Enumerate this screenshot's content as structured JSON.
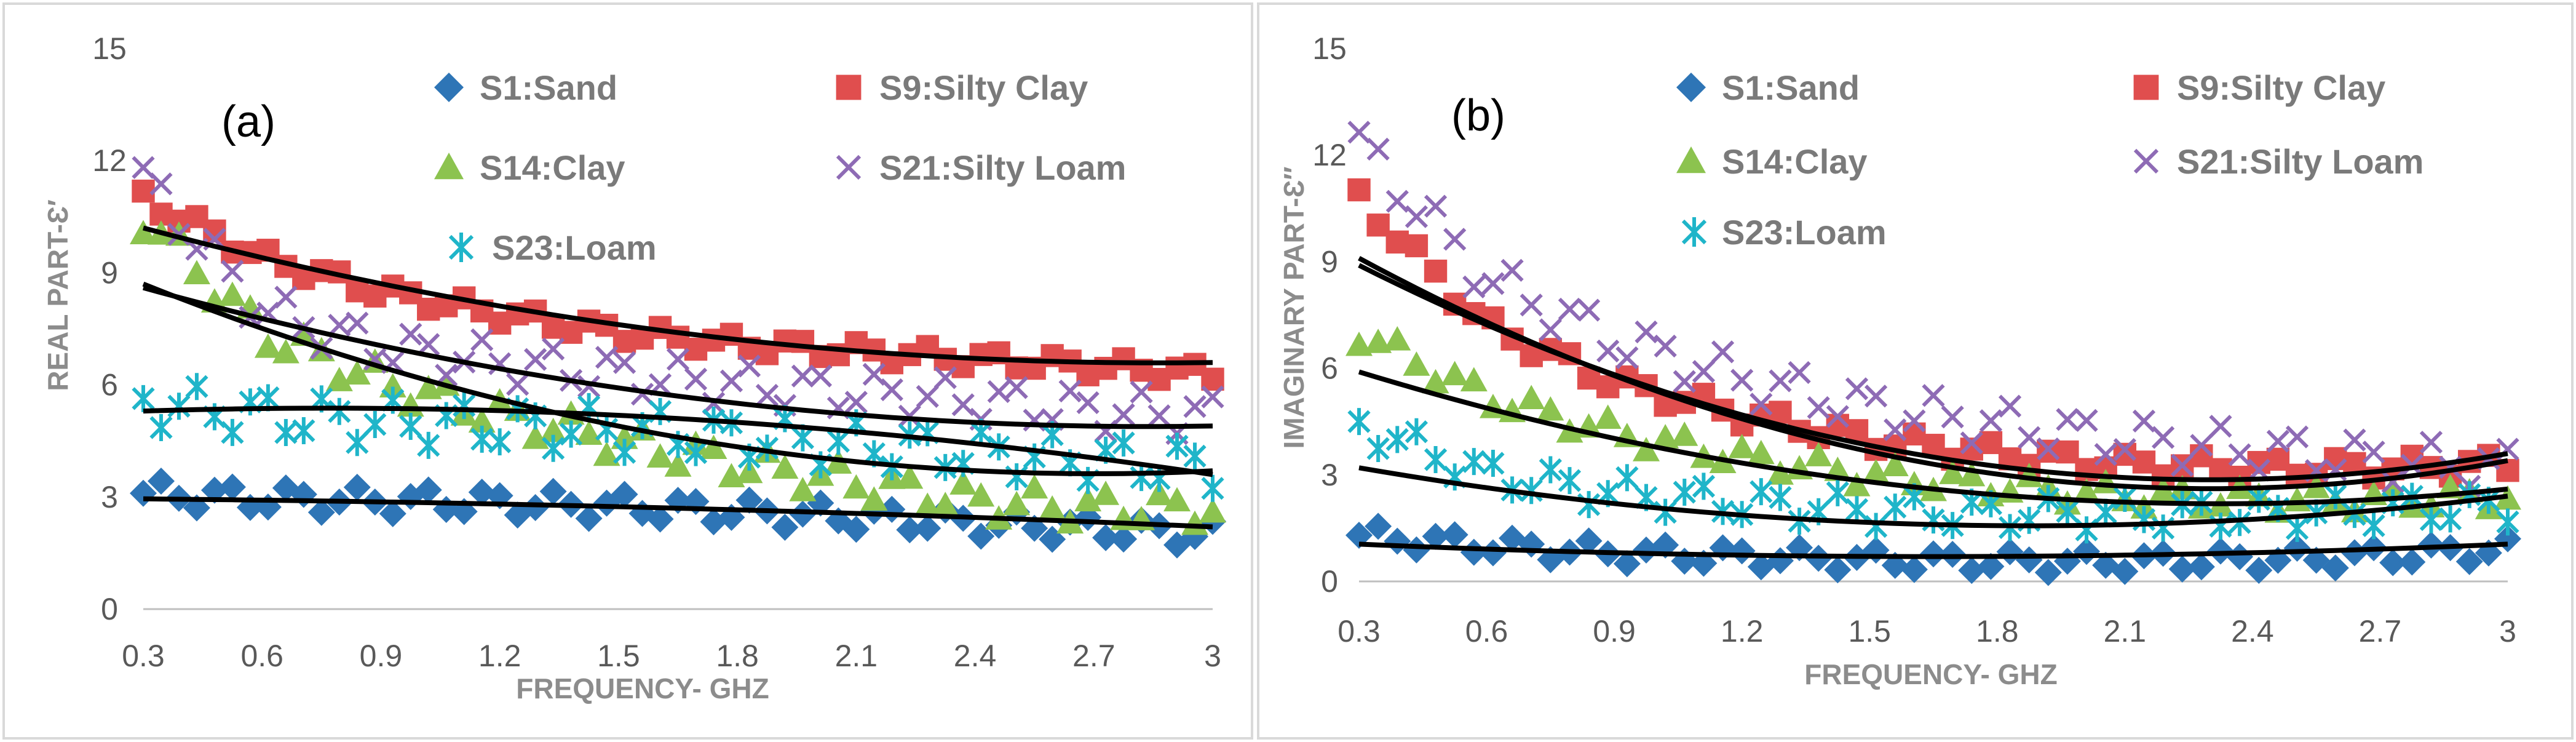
{
  "figure": {
    "series_styles": [
      {
        "key": "s1",
        "color": "#2e75b6",
        "marker": "diamond"
      },
      {
        "key": "s9",
        "color": "#e04e4e",
        "marker": "square"
      },
      {
        "key": "s14",
        "color": "#8cc34f",
        "marker": "triangle"
      },
      {
        "key": "s21",
        "color": "#8e6bb5",
        "marker": "x"
      },
      {
        "key": "s23",
        "color": "#1fb5c9",
        "marker": "asterisk"
      }
    ],
    "fit_color": "#000000",
    "grid": false
  },
  "chart_data": [
    {
      "type": "scatter",
      "panel_label": "(a)",
      "xlabel": "FREQUENCY- GHZ",
      "ylabel": "REAL PART-Ɛ′",
      "xlim": [
        0.3,
        3.0
      ],
      "ylim": [
        0,
        15
      ],
      "xticks": [
        "0.3",
        "0.6",
        "0.9",
        "1.2",
        "1.5",
        "1.8",
        "2.1",
        "2.4",
        "2.7",
        "3"
      ],
      "yticks": [
        "0",
        "3",
        "6",
        "9",
        "12",
        "15"
      ],
      "legend": [
        "S1:Sand",
        "S9:Silty Clay",
        "S14:Clay",
        "S21:Silty Loam",
        "S23:Loam"
      ],
      "series": [
        {
          "name": "S1:Sand",
          "x": [
            0.3,
            0.6,
            0.9,
            1.2,
            1.5,
            1.8,
            2.1,
            2.4,
            2.7,
            3.0
          ],
          "y": [
            3.1,
            2.95,
            2.9,
            2.85,
            2.75,
            2.6,
            2.45,
            2.3,
            2.15,
            2.0
          ],
          "spread": 0.35
        },
        {
          "name": "S9:Silty Clay",
          "x": [
            0.3,
            0.6,
            0.9,
            1.2,
            1.5,
            1.8,
            2.1,
            2.4,
            2.7,
            3.0
          ],
          "y": [
            11.0,
            9.4,
            8.5,
            7.9,
            7.4,
            7.1,
            6.9,
            6.7,
            6.5,
            6.3
          ],
          "spread": 0.25
        },
        {
          "name": "S14:Clay",
          "x": [
            0.3,
            0.6,
            0.9,
            1.2,
            1.5,
            1.8,
            2.1,
            2.4,
            2.7,
            3.0
          ],
          "y": [
            10.5,
            7.4,
            6.1,
            5.2,
            4.5,
            3.9,
            3.4,
            2.9,
            2.7,
            2.7
          ],
          "spread": 0.45
        },
        {
          "name": "S21:Silty Loam",
          "x": [
            0.3,
            0.6,
            0.9,
            1.2,
            1.5,
            1.8,
            2.1,
            2.4,
            2.7,
            3.0
          ],
          "y": [
            11.5,
            8.0,
            7.0,
            6.6,
            6.3,
            6.0,
            5.8,
            5.6,
            5.3,
            5.2
          ],
          "spread": 0.55
        },
        {
          "name": "S23:Loam",
          "x": [
            0.3,
            0.6,
            0.9,
            1.2,
            1.5,
            1.8,
            2.1,
            2.4,
            2.7,
            3.0
          ],
          "y": [
            5.5,
            5.2,
            5.0,
            4.9,
            4.8,
            4.6,
            4.4,
            4.2,
            4.0,
            3.8
          ],
          "spread": 0.6
        }
      ],
      "fits": [
        {
          "name": "S1:Sand",
          "x": [
            0.3,
            1.65,
            3.0
          ],
          "y": [
            2.95,
            2.7,
            2.2
          ]
        },
        {
          "name": "S9:Silty Clay",
          "x": [
            0.3,
            1.65,
            3.0
          ],
          "y": [
            10.2,
            7.4,
            6.6
          ]
        },
        {
          "name": "S14:Clay",
          "x": [
            0.3,
            1.65,
            3.0
          ],
          "y": [
            8.7,
            4.6,
            3.7
          ]
        },
        {
          "name": "S21:Silty Loam",
          "x": [
            0.3,
            1.65,
            3.0
          ],
          "y": [
            8.6,
            5.7,
            4.9
          ]
        },
        {
          "name": "S23:Loam",
          "x": [
            0.3,
            1.65,
            3.0
          ],
          "y": [
            5.3,
            5.1,
            3.6
          ]
        }
      ]
    },
    {
      "type": "scatter",
      "panel_label": "(b)",
      "xlabel": "FREQUENCY- GHZ",
      "ylabel": "IMAGINARY PART-Ɛ″",
      "xlim": [
        0.3,
        3.0
      ],
      "ylim": [
        0,
        15
      ],
      "xticks": [
        "0.3",
        "0.6",
        "0.9",
        "1.2",
        "1.5",
        "1.8",
        "2.1",
        "2.4",
        "2.7",
        "3"
      ],
      "yticks": [
        "0",
        "3",
        "6",
        "9",
        "12",
        "15"
      ],
      "legend": [
        "S1:Sand",
        "S9:Silty Clay",
        "S14:Clay",
        "S21:Silty Loam",
        "S23:Loam"
      ],
      "series": [
        {
          "name": "S1:Sand",
          "x": [
            0.3,
            0.6,
            0.9,
            1.2,
            1.5,
            1.8,
            2.1,
            2.4,
            2.7,
            3.0
          ],
          "y": [
            1.3,
            1.0,
            0.8,
            0.7,
            0.6,
            0.55,
            0.55,
            0.6,
            0.7,
            0.9
          ],
          "spread": 0.3
        },
        {
          "name": "S9:Silty Clay",
          "x": [
            0.3,
            0.6,
            0.9,
            1.2,
            1.5,
            1.8,
            2.1,
            2.4,
            2.7,
            3.0
          ],
          "y": [
            10.8,
            7.2,
            5.6,
            4.7,
            4.0,
            3.6,
            3.3,
            3.2,
            3.2,
            3.3
          ],
          "spread": 0.3
        },
        {
          "name": "S14:Clay",
          "x": [
            0.3,
            0.6,
            0.9,
            1.2,
            1.5,
            1.8,
            2.1,
            2.4,
            2.7,
            3.0
          ],
          "y": [
            7.0,
            5.2,
            4.2,
            3.5,
            3.0,
            2.7,
            2.4,
            2.3,
            2.3,
            2.4
          ],
          "spread": 0.35
        },
        {
          "name": "S21:Silty Loam",
          "x": [
            0.3,
            0.6,
            0.9,
            1.2,
            1.5,
            1.8,
            2.1,
            2.4,
            2.7,
            3.0
          ],
          "y": [
            12.3,
            8.5,
            6.8,
            5.7,
            4.9,
            4.4,
            4.0,
            3.7,
            3.4,
            3.2
          ],
          "spread": 0.6
        },
        {
          "name": "S23:Loam",
          "x": [
            0.3,
            0.6,
            0.9,
            1.2,
            1.5,
            1.8,
            2.1,
            2.4,
            2.7,
            3.0
          ],
          "y": [
            4.4,
            3.0,
            2.5,
            2.2,
            2.0,
            1.9,
            1.9,
            1.9,
            2.0,
            2.1
          ],
          "spread": 0.45
        }
      ],
      "fits": [
        {
          "name": "S1:Sand",
          "x": [
            0.3,
            1.65,
            3.0
          ],
          "y": [
            1.05,
            0.7,
            1.05
          ]
        },
        {
          "name": "S9:Silty Clay",
          "x": [
            0.3,
            1.65,
            3.0
          ],
          "y": [
            8.9,
            3.5,
            3.6
          ]
        },
        {
          "name": "S14:Clay",
          "x": [
            0.3,
            1.65,
            3.0
          ],
          "y": [
            5.9,
            2.6,
            2.6
          ]
        },
        {
          "name": "S21:Silty Loam",
          "x": [
            0.3,
            1.65,
            3.0
          ],
          "y": [
            9.1,
            3.3,
            3.4
          ]
        },
        {
          "name": "S23:Loam",
          "x": [
            0.3,
            1.65,
            3.0
          ],
          "y": [
            3.2,
            1.6,
            2.4
          ]
        }
      ]
    }
  ]
}
